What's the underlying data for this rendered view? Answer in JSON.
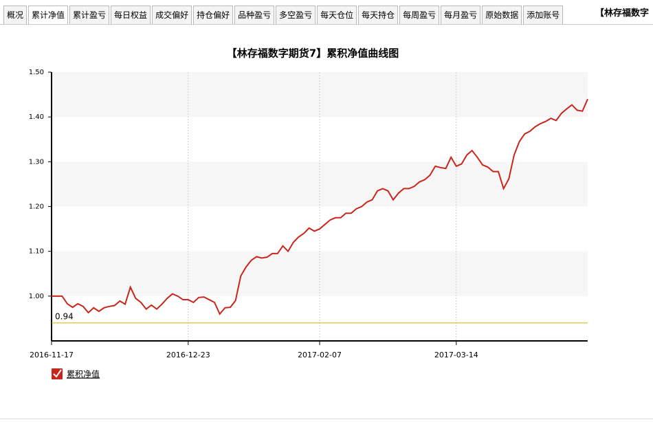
{
  "tabs": [
    "概况",
    "累计净值",
    "累计盈亏",
    "每日权益",
    "成交偏好",
    "持仓偏好",
    "品种盈亏",
    "多空盈亏",
    "每天仓位",
    "每天持仓",
    "每周盈亏",
    "每月盈亏",
    "原始数据",
    "添加账号"
  ],
  "active_tab": 1,
  "header_right": "【林存福数字",
  "chart_data": {
    "type": "line",
    "title": "【林存福数字期货7】累积净值曲线图",
    "categories": [
      "2016-11-17",
      null,
      null,
      null,
      null,
      null,
      null,
      null,
      null,
      null,
      null,
      null,
      null,
      null,
      null,
      null,
      null,
      null,
      null,
      null,
      null,
      null,
      null,
      null,
      null,
      null,
      "2016-12-23",
      null,
      null,
      null,
      null,
      null,
      null,
      null,
      null,
      null,
      null,
      null,
      null,
      null,
      null,
      null,
      null,
      null,
      null,
      null,
      null,
      null,
      null,
      null,
      null,
      "2017-02-07",
      null,
      null,
      null,
      null,
      null,
      null,
      null,
      null,
      null,
      null,
      null,
      null,
      null,
      null,
      null,
      null,
      null,
      null,
      null,
      null,
      null,
      null,
      null,
      null,
      null,
      "2017-03-14",
      null,
      null,
      null,
      null,
      null,
      null,
      null,
      null,
      null,
      null,
      null,
      null,
      null,
      null,
      null,
      null,
      null,
      null,
      null,
      null,
      null,
      null,
      null,
      null,
      null
    ],
    "series": [
      {
        "name": "累积净值",
        "color": "#c8251b",
        "values": [
          1.0,
          1.0,
          1.0,
          0.983,
          0.975,
          0.983,
          0.977,
          0.963,
          0.974,
          0.966,
          0.974,
          0.977,
          0.979,
          0.989,
          0.982,
          1.02,
          0.995,
          0.986,
          0.971,
          0.98,
          0.971,
          0.982,
          0.995,
          1.005,
          1.0,
          0.992,
          0.992,
          0.986,
          0.997,
          0.998,
          0.992,
          0.986,
          0.96,
          0.974,
          0.975,
          0.99,
          1.045,
          1.065,
          1.08,
          1.088,
          1.085,
          1.087,
          1.095,
          1.095,
          1.112,
          1.1,
          1.12,
          1.132,
          1.14,
          1.152,
          1.145,
          1.15,
          1.16,
          1.17,
          1.175,
          1.175,
          1.185,
          1.185,
          1.195,
          1.2,
          1.21,
          1.215,
          1.235,
          1.24,
          1.235,
          1.215,
          1.23,
          1.24,
          1.24,
          1.245,
          1.255,
          1.26,
          1.27,
          1.29,
          1.287,
          1.285,
          1.31,
          1.29,
          1.295,
          1.315,
          1.325,
          1.31,
          1.293,
          1.288,
          1.278,
          1.278,
          1.24,
          1.262,
          1.315,
          1.345,
          1.362,
          1.368,
          1.378,
          1.385,
          1.39,
          1.397,
          1.392,
          1.408,
          1.418,
          1.427,
          1.415,
          1.413,
          1.44
        ]
      }
    ],
    "ylim": [
      0.9,
      1.5
    ],
    "yticks": [
      {
        "value": 1,
        "label": "1.00"
      },
      {
        "value": 1.1,
        "label": "1.10"
      },
      {
        "value": 1.2,
        "label": "1.20"
      },
      {
        "value": 1.3,
        "label": "1.30"
      },
      {
        "value": 1.4,
        "label": "1.40"
      },
      {
        "value": 1.5,
        "label": "1.50"
      }
    ],
    "plot_lines": [
      {
        "value": 0.94,
        "color": "#d4b106"
      }
    ],
    "bands": true,
    "grid_x": true
  }
}
